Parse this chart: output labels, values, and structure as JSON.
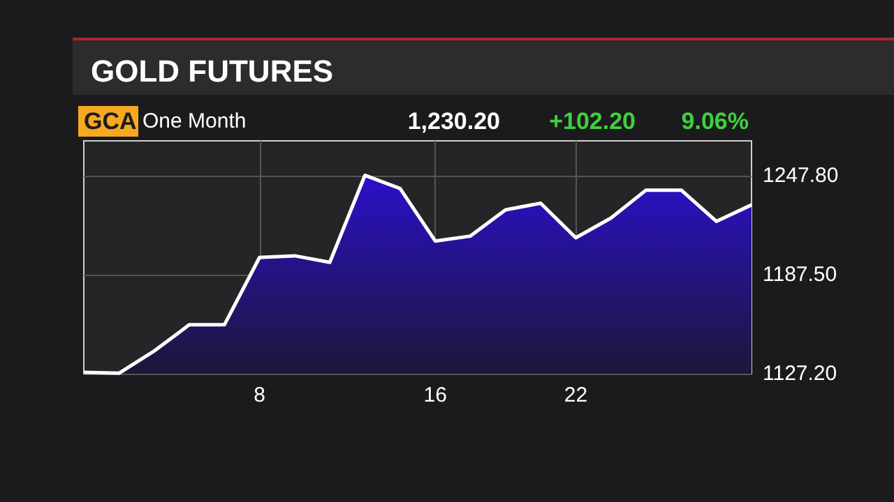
{
  "chart_data": {
    "type": "area",
    "title": "GOLD FUTURES",
    "annotations": [
      "GCA",
      "One Month",
      "1,230.20",
      "+102.20",
      "9.06%"
    ],
    "categories": [
      null,
      null,
      null,
      null,
      null,
      "8",
      null,
      null,
      null,
      null,
      "16",
      null,
      null,
      null,
      "22",
      null,
      null,
      null,
      null,
      null
    ],
    "series": [
      {
        "color": "#2b10c8",
        "values": [
          1128,
          1127.5,
          1141,
          1157,
          1157,
          1198,
          1199,
          1195,
          1248,
          1240,
          1208,
          1211,
          1227,
          1231,
          1210,
          1222,
          1239,
          1239,
          1220,
          1230
        ]
      }
    ],
    "ylim": [
      1127.2,
      1269
    ],
    "yticks": [
      {
        "value": 1127.2,
        "label": "1127.20"
      },
      {
        "value": 1187.5,
        "label": "1187.50"
      },
      {
        "value": 1247.8,
        "label": "1247.80"
      }
    ],
    "grid": true,
    "marker": "none",
    "line_style": "solid"
  }
}
